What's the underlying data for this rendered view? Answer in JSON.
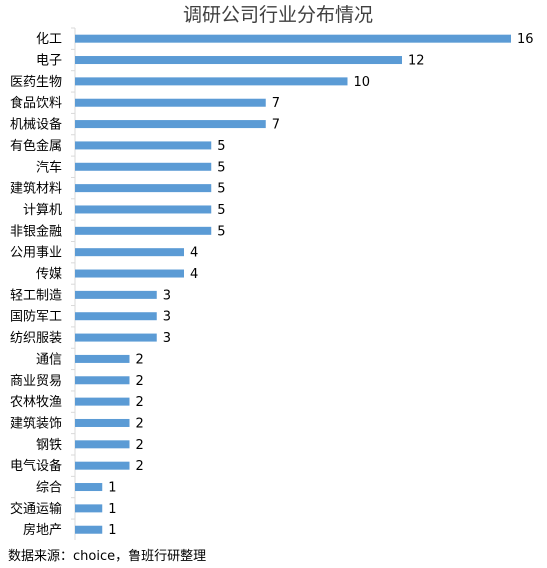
{
  "chart_data": {
    "type": "bar",
    "orientation": "horizontal",
    "title": "调研公司行业分布情况",
    "categories": [
      "化工",
      "电子",
      "医药生物",
      "食品饮料",
      "机械设备",
      "有色金属",
      "汽车",
      "建筑材料",
      "计算机",
      "非银金融",
      "公用事业",
      "传媒",
      "轻工制造",
      "国防军工",
      "纺织服装",
      "通信",
      "商业贸易",
      "农林牧渔",
      "建筑装饰",
      "钢铁",
      "电气设备",
      "综合",
      "交通运输",
      "房地产"
    ],
    "values": [
      16,
      12,
      10,
      7,
      7,
      5,
      5,
      5,
      5,
      5,
      4,
      4,
      3,
      3,
      3,
      2,
      2,
      2,
      2,
      2,
      2,
      1,
      1,
      1
    ],
    "xlim": [
      0,
      16
    ],
    "grid": false,
    "data_labels": true,
    "bar_color": "#5B9BD5"
  },
  "source_note": "数据来源：choice，鲁班行研整理"
}
